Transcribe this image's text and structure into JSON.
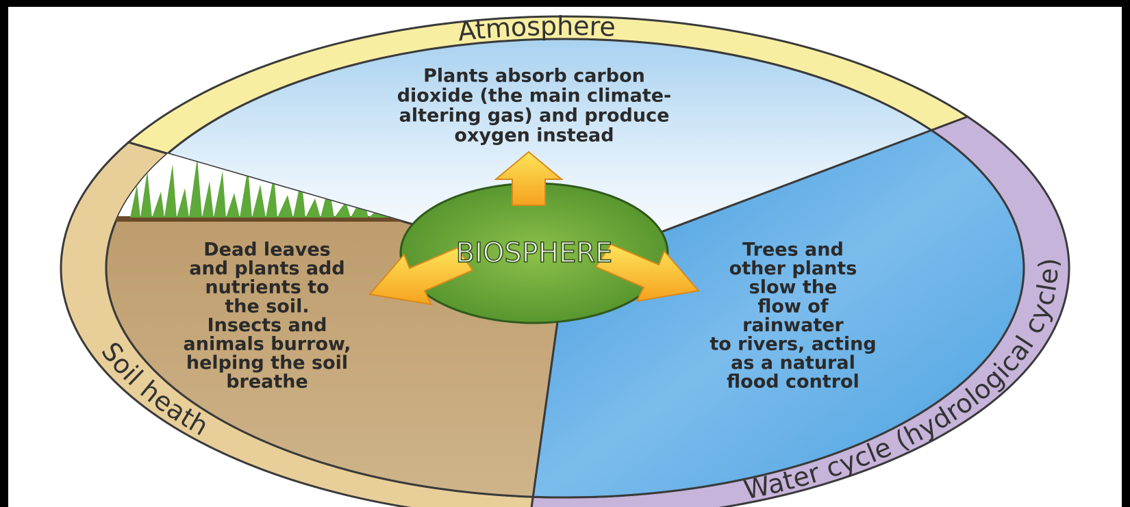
{
  "ring_labels": {
    "top": "Atmosphere",
    "left": "Soil heath",
    "right": "Water cycle (hydrological cycle)"
  },
  "center": "BIOSPHERE",
  "sections": {
    "atmosphere": {
      "lines": [
        "Plants absorb carbon",
        "dioxide (the main climate-",
        "altering gas) and produce",
        "oxygen instead"
      ]
    },
    "soil": {
      "lines": [
        "Dead leaves",
        "and plants add",
        "nutrients to",
        "the soil.",
        "Insects and",
        "animals burrow,",
        "helping the soil",
        "breathe"
      ]
    },
    "water": {
      "lines": [
        "Trees and",
        "other plants",
        "slow the",
        "flow of",
        "rainwater",
        "to rivers, acting",
        "as a natural",
        "flood control"
      ]
    }
  }
}
